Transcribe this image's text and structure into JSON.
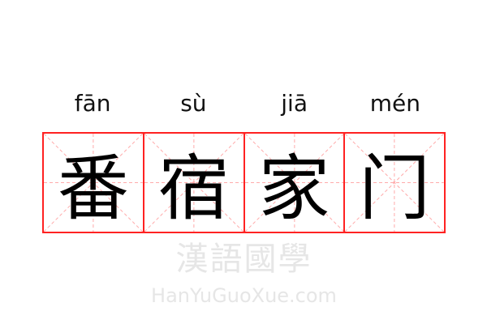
{
  "pinyin": [
    "fān",
    "sù",
    "jiā",
    "mén"
  ],
  "characters": [
    "番",
    "宿",
    "家",
    "门"
  ],
  "watermark": {
    "chinese": "漢語國學",
    "latin": "HanYuGuoXue.com"
  },
  "colors": {
    "grid_border": "#ff2222",
    "guide_lines": "#ffaaaa",
    "text": "#000000"
  }
}
